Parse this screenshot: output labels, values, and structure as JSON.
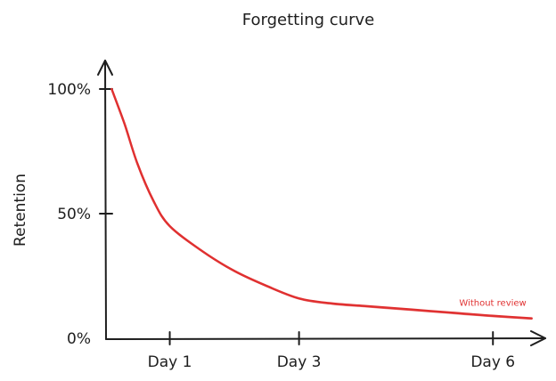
{
  "chart_data": {
    "type": "line",
    "title": "Forgetting curve",
    "xlabel": "",
    "ylabel": "Retention",
    "x_ticks": [
      {
        "label": "Day 1",
        "value": 1
      },
      {
        "label": "Day 3",
        "value": 3
      },
      {
        "label": "Day 6",
        "value": 6
      }
    ],
    "y_ticks": [
      {
        "label": "100%",
        "value": 100
      },
      {
        "label": "50%",
        "value": 50
      },
      {
        "label": "0%",
        "value": 0
      }
    ],
    "xlim": [
      0,
      6.7
    ],
    "ylim": [
      0,
      100
    ],
    "grid": false,
    "series": [
      {
        "name": "Without review",
        "color": "#e03131",
        "points": [
          {
            "x": 0.1,
            "y": 100
          },
          {
            "x": 0.3,
            "y": 86
          },
          {
            "x": 0.5,
            "y": 70
          },
          {
            "x": 0.75,
            "y": 55
          },
          {
            "x": 1.0,
            "y": 45
          },
          {
            "x": 1.5,
            "y": 35
          },
          {
            "x": 2.0,
            "y": 27
          },
          {
            "x": 2.5,
            "y": 21
          },
          {
            "x": 3.0,
            "y": 16
          },
          {
            "x": 3.5,
            "y": 14
          },
          {
            "x": 4.0,
            "y": 13
          },
          {
            "x": 4.5,
            "y": 12
          },
          {
            "x": 5.0,
            "y": 11
          },
          {
            "x": 5.5,
            "y": 10
          },
          {
            "x": 6.0,
            "y": 9
          },
          {
            "x": 6.6,
            "y": 8
          }
        ]
      }
    ]
  }
}
